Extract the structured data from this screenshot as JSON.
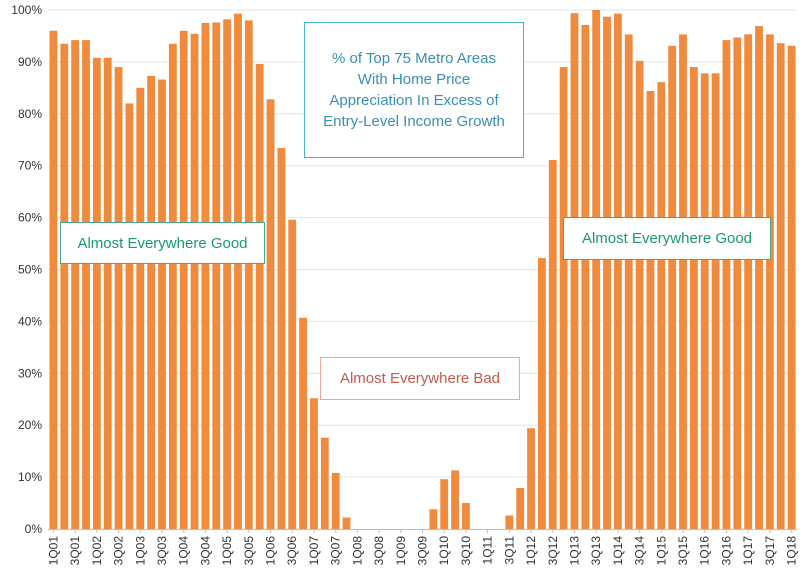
{
  "chart_data": {
    "type": "bar",
    "title": "% of Top 75 Metro Areas With Home Price Appreciation In Excess of Entry-Level Income Growth",
    "xlabel": "",
    "ylabel": "",
    "ylim": [
      0,
      100
    ],
    "y_ticks": [
      "0%",
      "10%",
      "20%",
      "30%",
      "40%",
      "50%",
      "60%",
      "70%",
      "80%",
      "90%",
      "100%"
    ],
    "bar_color": "#f08a3c",
    "categories": [
      "1Q01",
      "2Q01",
      "3Q01",
      "4Q01",
      "1Q02",
      "2Q02",
      "3Q02",
      "4Q02",
      "1Q03",
      "2Q03",
      "3Q03",
      "4Q03",
      "1Q04",
      "2Q04",
      "3Q04",
      "4Q04",
      "1Q05",
      "2Q05",
      "3Q05",
      "4Q05",
      "1Q06",
      "2Q06",
      "3Q06",
      "4Q06",
      "1Q07",
      "2Q07",
      "3Q07",
      "4Q07",
      "1Q08",
      "2Q08",
      "3Q08",
      "4Q08",
      "1Q09",
      "2Q09",
      "3Q09",
      "4Q09",
      "1Q10",
      "2Q10",
      "3Q10",
      "4Q10",
      "1Q11",
      "2Q11",
      "3Q11",
      "4Q11",
      "1Q12",
      "2Q12",
      "3Q12",
      "4Q12",
      "1Q13",
      "2Q13",
      "3Q13",
      "4Q13",
      "1Q14",
      "2Q14",
      "3Q14",
      "4Q14",
      "1Q15",
      "2Q15",
      "3Q15",
      "4Q15",
      "1Q16",
      "2Q16",
      "3Q16",
      "4Q16",
      "1Q17",
      "2Q17",
      "3Q17",
      "4Q17",
      "1Q18"
    ],
    "x_tick_labels": [
      "1Q01",
      "3Q01",
      "1Q02",
      "3Q02",
      "1Q03",
      "3Q03",
      "1Q04",
      "3Q04",
      "1Q05",
      "3Q05",
      "1Q06",
      "3Q06",
      "1Q07",
      "3Q07",
      "1Q08",
      "3Q08",
      "1Q09",
      "3Q09",
      "1Q10",
      "3Q10",
      "1Q11",
      "3Q11",
      "1Q12",
      "3Q12",
      "1Q13",
      "3Q13",
      "1Q14",
      "3Q14",
      "1Q15",
      "3Q15",
      "1Q16",
      "3Q16",
      "1Q17",
      "3Q17",
      "1Q18"
    ],
    "values": [
      96,
      93.5,
      94.2,
      94.2,
      90.8,
      90.8,
      89,
      82,
      85,
      87.3,
      86.6,
      93.5,
      96,
      95.4,
      97.5,
      97.6,
      98.2,
      99.3,
      98,
      89.6,
      82.8,
      73.4,
      59.6,
      40.7,
      25.2,
      17.6,
      10.8,
      2.2,
      0,
      0,
      0,
      0,
      0,
      0,
      0,
      3.8,
      9.6,
      11.3,
      5,
      0,
      0,
      0,
      2.6,
      7.9,
      19.4,
      52.2,
      71.1,
      89,
      99.4,
      97.1,
      100,
      98.7,
      99.3,
      95.3,
      90.2,
      84.4,
      86.1,
      93.1,
      95.3,
      89,
      87.8,
      87.8,
      94.2,
      94.7,
      95.3,
      96.9,
      95.3,
      93.6,
      93.1
    ],
    "annotations": {
      "title": "% of Top 75 Metro Areas With Home Price Appreciation In Excess of Entry-Level Income Growth",
      "good_left": "Almost Everywhere Good",
      "bad": "Almost Everywhere Bad",
      "good_right": "Almost Everywhere Good"
    }
  }
}
